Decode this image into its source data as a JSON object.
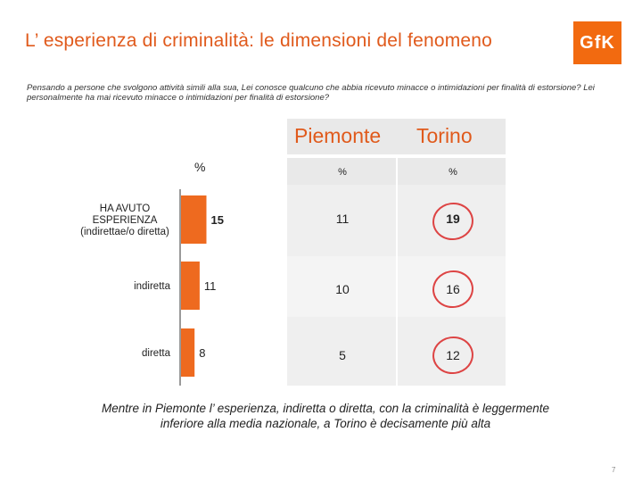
{
  "title": "L’ esperienza di criminalità: le dimensioni del fenomeno",
  "logo": "GfK",
  "question": "Pensando a persone che svolgono attività simili alla sua, Lei conosce qualcuno che abbia ricevuto minacce o intimidazioni per finalità di estorsione? Lei personalmente ha mai ricevuto minacce o intimidazioni per finalità di estorsione?",
  "colors": {
    "accent": "#e05a1c",
    "bar": "#ee6a1f",
    "circle": "#d44444"
  },
  "chart_data": {
    "type": "bar",
    "orientation": "horizontal",
    "unit": "%",
    "categories": [
      "HA AVUTO ESPERIENZA (indirettae/o diretta)",
      "indiretta",
      "diretta"
    ],
    "values": [
      15,
      11,
      8
    ],
    "value_labels": [
      "15",
      "11",
      "8"
    ]
  },
  "table": {
    "columns": [
      {
        "label": "Piemonte",
        "unit": "%",
        "values": [
          "11",
          "10",
          "5"
        ]
      },
      {
        "label": "Torino",
        "unit": "%",
        "values": [
          "19",
          "16",
          "12"
        ]
      }
    ]
  },
  "conclusion": {
    "line1": "Mentre in Piemonte l’ esperienza, indiretta o diretta, con la criminalità è leggermente",
    "line2": "inferiore alla media nazionale, a Torino è decisamente più alta"
  },
  "page_number": "7"
}
